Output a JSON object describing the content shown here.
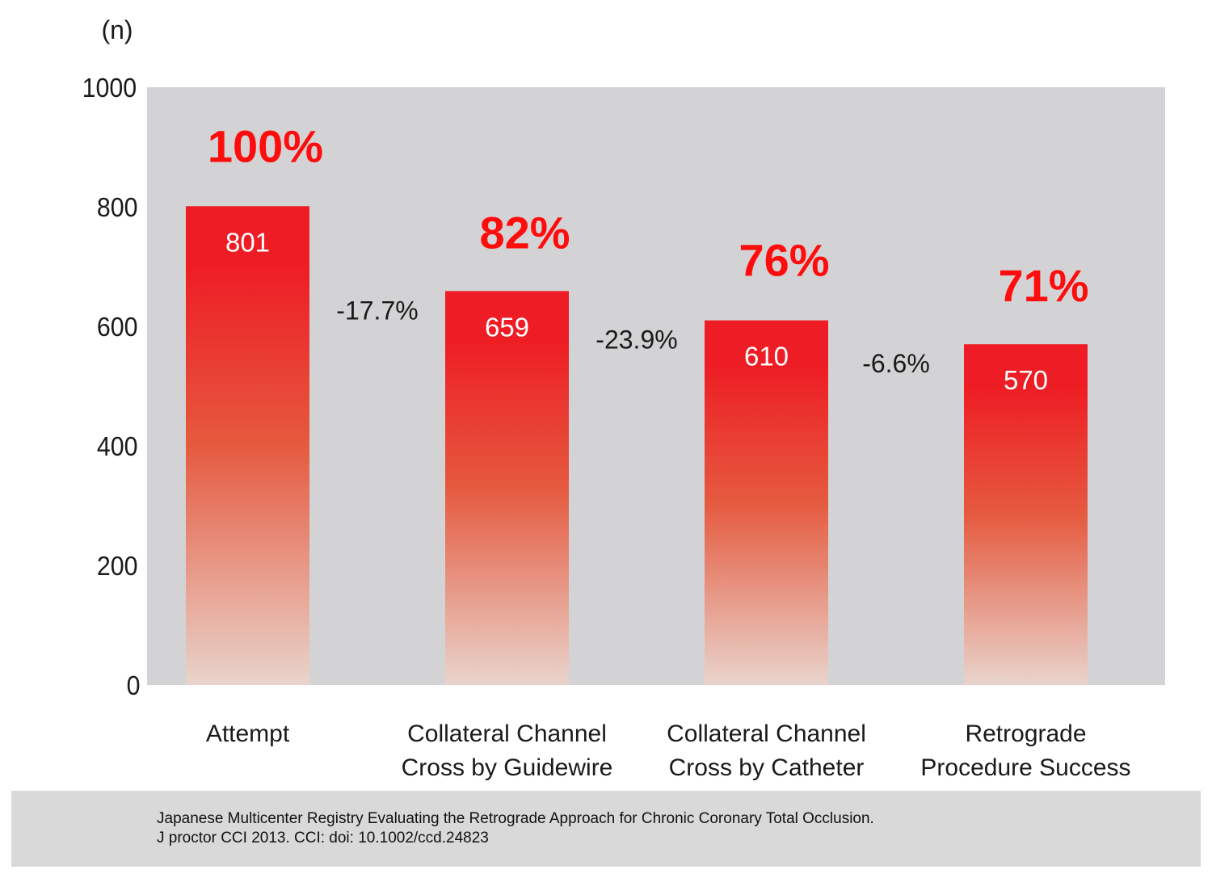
{
  "chart_data": {
    "type": "bar",
    "unit_label": "(n)",
    "categories": [
      [
        "Attempt"
      ],
      [
        "Collateral Channel",
        "Cross by Guidewire"
      ],
      [
        "Collateral Channel",
        "Cross by Catheter"
      ],
      [
        "Retrograde",
        "Procedure Success"
      ]
    ],
    "values": [
      801,
      659,
      610,
      570
    ],
    "value_labels": [
      "801",
      "659",
      "610",
      "570"
    ],
    "percent_labels": [
      "100%",
      "82%",
      "76%",
      "71%"
    ],
    "change_labels": [
      "-17.7%",
      "-23.9%",
      "-6.6%"
    ],
    "ylim": [
      0,
      1000
    ],
    "yticks": [
      0,
      200,
      400,
      600,
      800,
      1000
    ],
    "grid": false,
    "colors": {
      "plot_background": "#d3d3d5",
      "bar_top": "#ee1c24",
      "bar_mid": "#e55a3f",
      "bar_bottom": "#e9d4cc",
      "percent_text": "#ff0d0d"
    }
  },
  "footer": {
    "line1": "Japanese Multicenter Registry Evaluating the Retrograde Approach for Chronic Coronary Total Occlusion.",
    "line2": "J proctor CCI 2013. CCI:  doi: 10.1002/ccd.24823"
  }
}
